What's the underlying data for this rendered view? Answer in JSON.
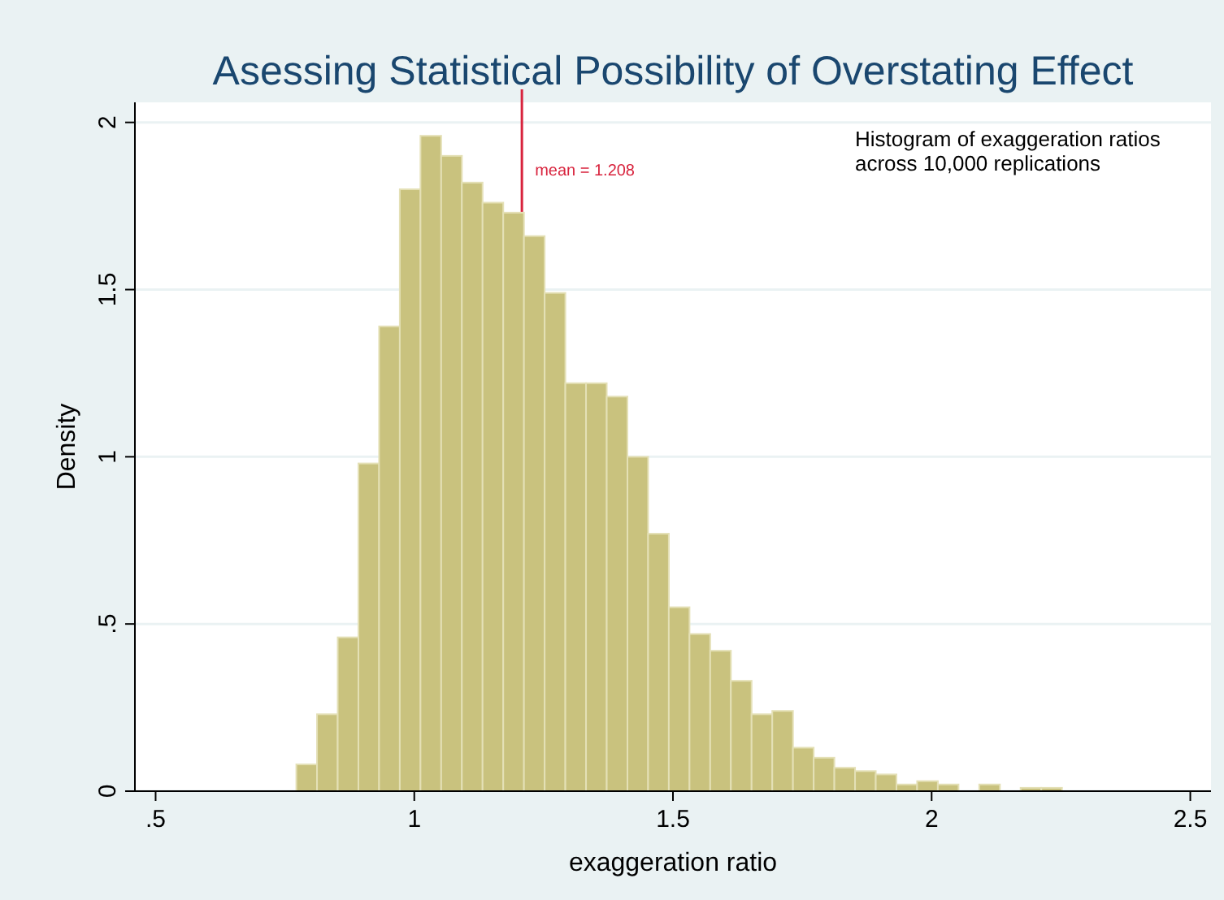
{
  "chart_data": {
    "type": "histogram",
    "title": "Asessing Statistical Possibility of Overstating Effect",
    "xlabel": "exaggeration ratio",
    "ylabel": "Density",
    "bins": [
      0.772,
      0.812,
      0.852,
      0.892,
      0.932,
      0.972,
      1.012,
      1.052,
      1.092,
      1.132,
      1.172,
      1.212,
      1.252,
      1.292,
      1.332,
      1.372,
      1.412,
      1.452,
      1.492,
      1.532,
      1.572,
      1.612,
      1.652,
      1.692,
      1.732,
      1.772,
      1.812,
      1.852,
      1.892,
      1.932,
      1.972,
      2.012,
      2.052,
      2.092,
      2.132,
      2.172,
      2.212,
      2.252
    ],
    "values": [
      0.08,
      0.23,
      0.46,
      0.98,
      1.39,
      1.8,
      1.96,
      1.9,
      1.82,
      1.76,
      1.73,
      1.66,
      1.49,
      1.22,
      1.22,
      1.18,
      1.0,
      0.77,
      0.55,
      0.47,
      0.42,
      0.33,
      0.23,
      0.24,
      0.13,
      0.1,
      0.07,
      0.06,
      0.05,
      0.02,
      0.03,
      0.02,
      0,
      0.02,
      0,
      0.01,
      0.01
    ],
    "color": "#c9c27e",
    "xlim": [
      0.46,
      2.54
    ],
    "ylim": [
      0,
      2.06
    ],
    "xticks": [
      {
        "value": 0.5,
        "label": ".5"
      },
      1,
      1.5,
      2,
      2.5
    ],
    "yticks": [
      0,
      {
        "value": 0.5,
        "label": ".5"
      },
      1,
      1.5,
      2
    ],
    "grid": "y",
    "ref_lines": [
      {
        "axis": "x",
        "value": 1.208,
        "label": "mean = 1.208",
        "color": "#d8233d"
      }
    ],
    "annotations": [
      "Histogram of exaggeration ratios\nacross 10,000 replications"
    ]
  }
}
